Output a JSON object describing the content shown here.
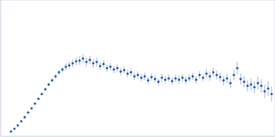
{
  "chart_data": {
    "type": "scatter",
    "marker": "circle",
    "color": "#2f5fb3",
    "grid": true,
    "tick_labels": false,
    "xlim": [
      0,
      6
    ],
    "ylim": [
      0,
      2.2
    ],
    "xticks": [
      1.732
    ],
    "yticks": [
      1.1
    ],
    "x": [
      0.225,
      0.3,
      0.375,
      0.45,
      0.525,
      0.6,
      0.675,
      0.75,
      0.825,
      0.9,
      0.975,
      1.05,
      1.125,
      1.2,
      1.275,
      1.35,
      1.425,
      1.5,
      1.575,
      1.65,
      1.725,
      1.8,
      1.875,
      1.95,
      2.025,
      2.1,
      2.175,
      2.25,
      2.325,
      2.4,
      2.475,
      2.55,
      2.625,
      2.7,
      2.775,
      2.85,
      2.925,
      3.0,
      3.075,
      3.15,
      3.225,
      3.3,
      3.375,
      3.45,
      3.525,
      3.6,
      3.675,
      3.75,
      3.825,
      3.9,
      3.975,
      4.05,
      4.125,
      4.2,
      4.275,
      4.35,
      4.425,
      4.5,
      4.575,
      4.65,
      4.725,
      4.8,
      4.875,
      4.95,
      5.025,
      5.1,
      5.175,
      5.25,
      5.325,
      5.4,
      5.475,
      5.55,
      5.625,
      5.7,
      5.775,
      5.85,
      5.925
    ],
    "values": [
      0.077,
      0.121,
      0.176,
      0.242,
      0.308,
      0.385,
      0.451,
      0.528,
      0.605,
      0.682,
      0.759,
      0.836,
      0.902,
      0.968,
      1.034,
      1.078,
      1.122,
      1.144,
      1.177,
      1.21,
      1.221,
      1.254,
      1.199,
      1.232,
      1.177,
      1.199,
      1.133,
      1.166,
      1.1,
      1.122,
      1.078,
      1.1,
      1.045,
      1.067,
      1.012,
      1.034,
      0.968,
      0.99,
      0.946,
      0.968,
      0.902,
      0.957,
      0.924,
      0.88,
      0.946,
      0.913,
      0.935,
      0.891,
      0.935,
      0.913,
      0.946,
      0.902,
      0.935,
      0.968,
      0.913,
      0.99,
      0.946,
      1.012,
      0.968,
      1.034,
      0.99,
      0.957,
      0.902,
      0.935,
      0.858,
      0.99,
      1.1,
      0.924,
      0.88,
      0.814,
      0.836,
      0.792,
      0.858,
      0.814,
      0.726,
      0.77,
      0.682
    ],
    "errors": [
      0.01,
      0.01,
      0.01,
      0.012,
      0.012,
      0.014,
      0.015,
      0.016,
      0.018,
      0.02,
      0.022,
      0.025,
      0.03,
      0.035,
      0.04,
      0.045,
      0.05,
      0.055,
      0.06,
      0.065,
      0.07,
      0.07,
      0.07,
      0.07,
      0.07,
      0.07,
      0.06,
      0.06,
      0.06,
      0.06,
      0.06,
      0.06,
      0.06,
      0.06,
      0.06,
      0.06,
      0.06,
      0.06,
      0.06,
      0.06,
      0.06,
      0.06,
      0.06,
      0.06,
      0.06,
      0.06,
      0.06,
      0.06,
      0.06,
      0.06,
      0.06,
      0.06,
      0.06,
      0.06,
      0.06,
      0.06,
      0.06,
      0.07,
      0.07,
      0.07,
      0.07,
      0.07,
      0.08,
      0.08,
      0.08,
      0.09,
      0.1,
      0.09,
      0.09,
      0.09,
      0.1,
      0.1,
      0.1,
      0.11,
      0.11,
      0.12,
      0.12
    ]
  }
}
